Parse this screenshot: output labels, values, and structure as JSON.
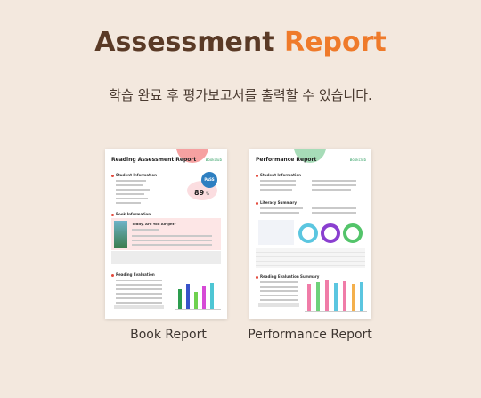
{
  "header": {
    "title_part1": "Assessment",
    "title_part2": "Report",
    "subtitle": "학습 완료 후 평가보고서를 출력할 수 있습니다."
  },
  "colors": {
    "title_brown": "#5a3a26",
    "title_orange": "#ef7a2a",
    "background": "#f3e8de"
  },
  "cards": [
    {
      "caption": "Book Report",
      "doc_title": "Reading Assessment Report",
      "logo": "Bookclub",
      "sections": [
        "Student Information",
        "Book Information",
        "Reading Evaluation"
      ],
      "score": "89",
      "score_unit": "%",
      "badge": "PASS",
      "book_title": "Teddy, Are You Alright?"
    },
    {
      "caption": "Performance Report",
      "doc_title": "Performance Report",
      "logo": "Bookclub",
      "sections": [
        "Student Information",
        "Literacy Summary",
        "Reading Evaluation Summary"
      ]
    }
  ]
}
